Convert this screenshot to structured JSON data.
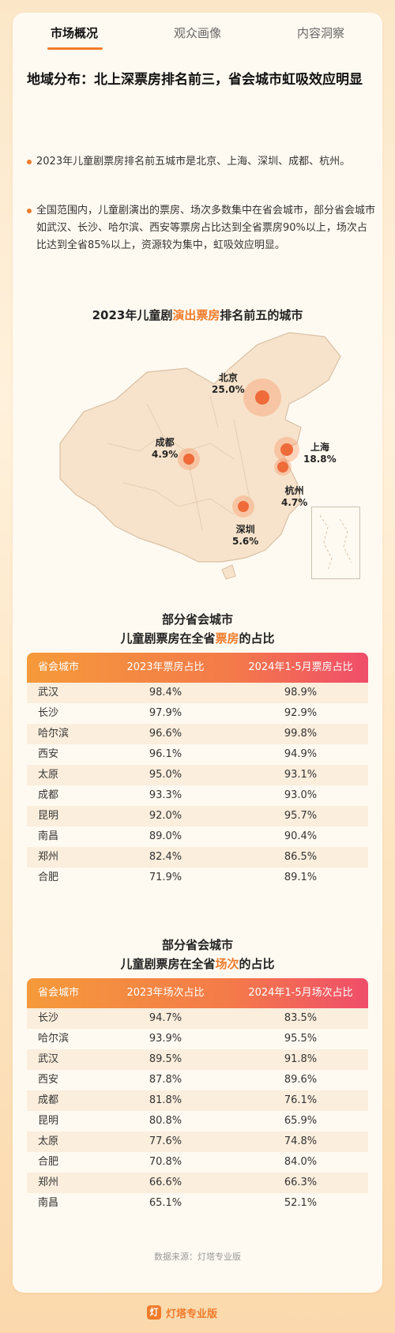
{
  "tabs": [
    "市场概况",
    "观众画像",
    "内容洞察"
  ],
  "headline": "地域分布：北上深票房排名前三，省会城市虹吸效应明显",
  "bullets": [
    "2023年儿童剧票房排名前五城市是北京、上海、深圳、成都、杭州。",
    "全国范围内，儿童剧演出的票房、场次多数集中在省会城市，部分省会城市如武汉、长沙、哈尔滨、西安等票房占比达到全省票房90%以上，场次占比达到全省85%以上，资源较为集中，虹吸效应明显。"
  ],
  "map": {
    "title_pre": "2023年儿童剧",
    "title_hl": "演出票房",
    "title_post": "排名前五的城市",
    "cities": [
      {
        "name": "北京",
        "value": "25.0%"
      },
      {
        "name": "上海",
        "value": "18.8%"
      },
      {
        "name": "深圳",
        "value": "5.6%"
      },
      {
        "name": "成都",
        "value": "4.9%"
      },
      {
        "name": "杭州",
        "value": "4.7%"
      }
    ]
  },
  "table1": {
    "title_line1": "部分省会城市",
    "title_pre": "儿童剧票房在全省",
    "title_hl": "票房",
    "title_post": "的占比",
    "headers": [
      "省会城市",
      "2023年票房占比",
      "2024年1-5月票房占比"
    ],
    "rows": [
      [
        "武汉",
        "98.4%",
        "98.9%"
      ],
      [
        "长沙",
        "97.9%",
        "92.9%"
      ],
      [
        "哈尔滨",
        "96.6%",
        "99.8%"
      ],
      [
        "西安",
        "96.1%",
        "94.9%"
      ],
      [
        "太原",
        "95.0%",
        "93.1%"
      ],
      [
        "成都",
        "93.3%",
        "93.0%"
      ],
      [
        "昆明",
        "92.0%",
        "95.7%"
      ],
      [
        "南昌",
        "89.0%",
        "90.4%"
      ],
      [
        "郑州",
        "82.4%",
        "86.5%"
      ],
      [
        "合肥",
        "71.9%",
        "89.1%"
      ]
    ]
  },
  "table2": {
    "title_line1": "部分省会城市",
    "title_pre": "儿童剧票房在全省",
    "title_hl": "场次",
    "title_post": "的占比",
    "headers": [
      "省会城市",
      "2023年场次占比",
      "2024年1-5月场次占比"
    ],
    "rows": [
      [
        "长沙",
        "94.7%",
        "83.5%"
      ],
      [
        "哈尔滨",
        "93.9%",
        "95.5%"
      ],
      [
        "武汉",
        "89.5%",
        "91.8%"
      ],
      [
        "西安",
        "87.8%",
        "89.6%"
      ],
      [
        "成都",
        "81.8%",
        "76.1%"
      ],
      [
        "昆明",
        "80.8%",
        "65.9%"
      ],
      [
        "太原",
        "77.6%",
        "74.8%"
      ],
      [
        "合肥",
        "70.8%",
        "84.0%"
      ],
      [
        "郑州",
        "66.6%",
        "66.3%"
      ],
      [
        "南昌",
        "65.1%",
        "52.1%"
      ]
    ]
  },
  "source": "数据来源：灯塔专业版",
  "brand": {
    "logo": "灯",
    "name": "灯塔专业版"
  },
  "colors": {
    "accent": "#f07b2b",
    "header_start": "#f59a3a",
    "header_end": "#ef4d6a"
  }
}
